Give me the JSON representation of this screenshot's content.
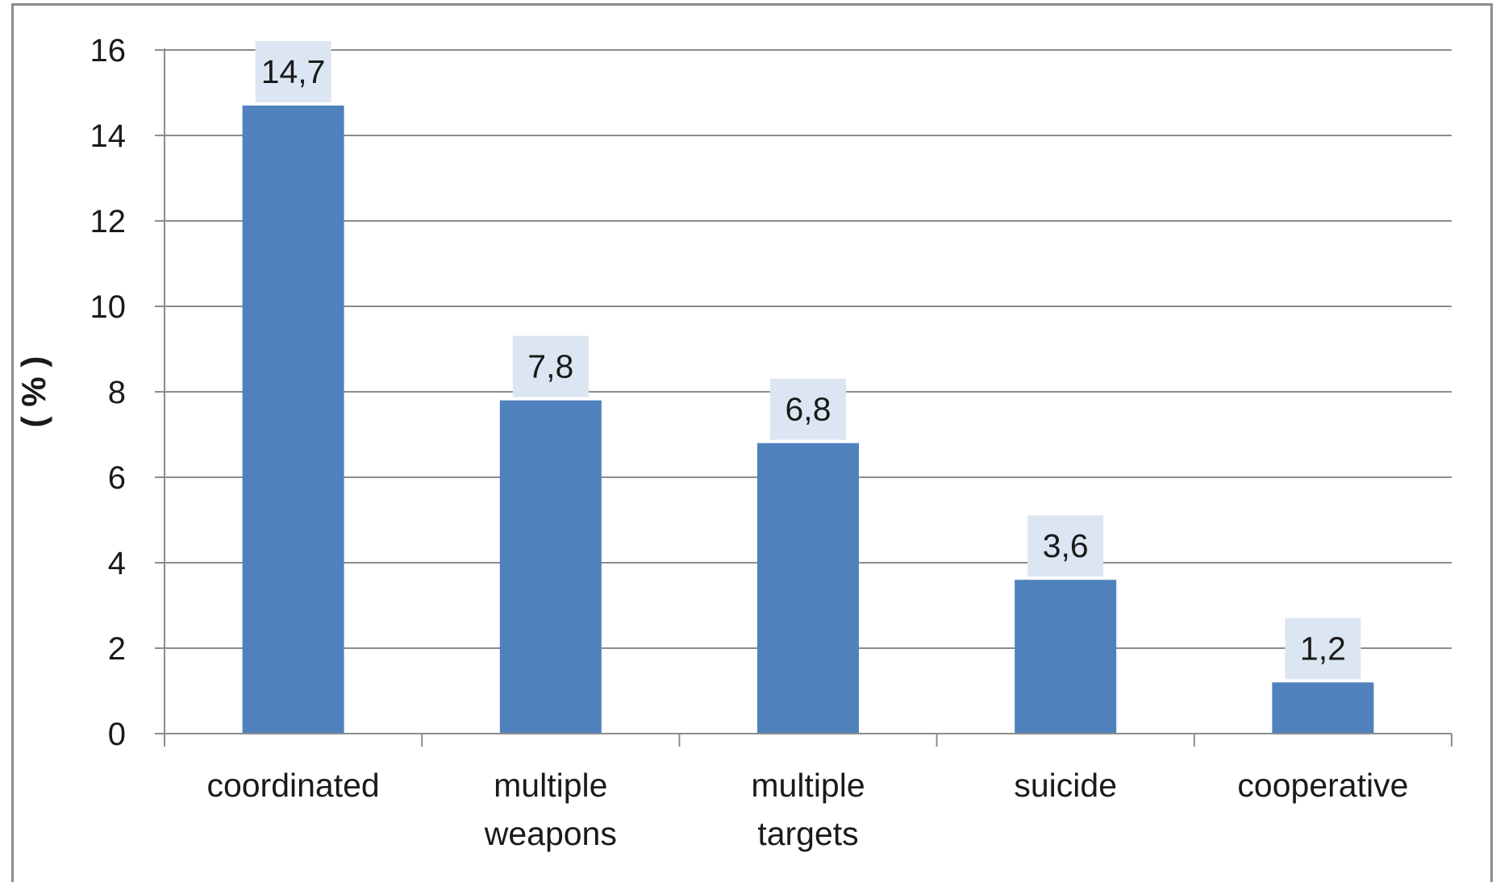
{
  "chart_data": {
    "type": "bar",
    "categories": [
      [
        "coordinated"
      ],
      [
        "multiple",
        "weapons"
      ],
      [
        "multiple",
        "targets"
      ],
      [
        "suicide"
      ],
      [
        "cooperative"
      ]
    ],
    "values": [
      14.7,
      7.8,
      6.8,
      3.6,
      1.2
    ],
    "data_labels": [
      "14,7",
      "7,8",
      "6,8",
      "3,6",
      "1,2"
    ],
    "y_ticks": [
      "0",
      "2",
      "4",
      "6",
      "8",
      "10",
      "12",
      "14",
      "16"
    ],
    "ylabel": "( % )",
    "xlabel": "",
    "title": "",
    "ylim": [
      0,
      16
    ],
    "grid": true,
    "legend": "none",
    "colors": {
      "bar": "#4f81bd",
      "data_label_bg": "#dce6f2",
      "gridline": "#8c8c8c",
      "axis": "#8c8c8c"
    }
  }
}
